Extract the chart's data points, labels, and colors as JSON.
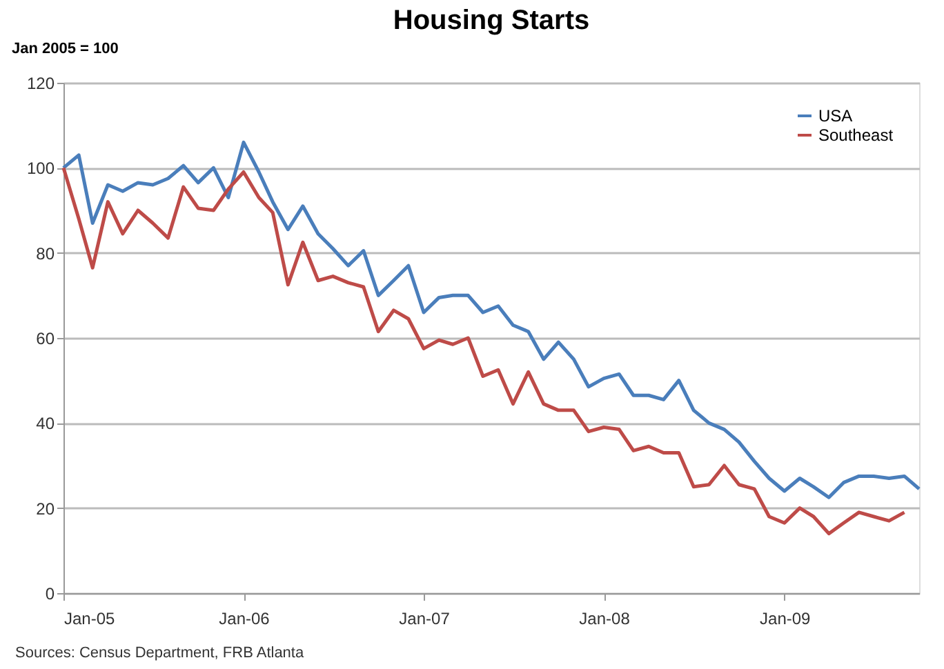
{
  "chart_data": {
    "type": "line",
    "title": "Housing Starts",
    "ylabel": "Jan 2005 = 100",
    "x": [
      "2005-01",
      "2005-02",
      "2005-03",
      "2005-04",
      "2005-05",
      "2005-06",
      "2005-07",
      "2005-08",
      "2005-09",
      "2005-10",
      "2005-11",
      "2005-12",
      "2006-01",
      "2006-02",
      "2006-03",
      "2006-04",
      "2006-05",
      "2006-06",
      "2006-07",
      "2006-08",
      "2006-09",
      "2006-10",
      "2006-11",
      "2006-12",
      "2007-01",
      "2007-02",
      "2007-03",
      "2007-04",
      "2007-05",
      "2007-06",
      "2007-07",
      "2007-08",
      "2007-09",
      "2007-10",
      "2007-11",
      "2007-12",
      "2008-01",
      "2008-02",
      "2008-03",
      "2008-04",
      "2008-05",
      "2008-06",
      "2008-07",
      "2008-08",
      "2008-09",
      "2008-10",
      "2008-11",
      "2008-12",
      "2009-01",
      "2009-02",
      "2009-03",
      "2009-04",
      "2009-05",
      "2009-06",
      "2009-07",
      "2009-08",
      "2009-09",
      "2009-10"
    ],
    "series": [
      {
        "name": "USA",
        "color": "#4a7ebb",
        "values": [
          100,
          103,
          87,
          96,
          94.5,
          96.5,
          96,
          97.5,
          100.5,
          96.5,
          100,
          93,
          106,
          99,
          92,
          85.5,
          91,
          84.5,
          81,
          77,
          80.5,
          70,
          73.5,
          77,
          66,
          69.5,
          70,
          70,
          66,
          67.5,
          63,
          61.5,
          55,
          59,
          55,
          48.5,
          50.5,
          51.5,
          46.5,
          46.5,
          45.5,
          50,
          43,
          40,
          38.5,
          35.5,
          31,
          27,
          24,
          27,
          25,
          22.5,
          26,
          27.5,
          27.5,
          27,
          27.5,
          24.5
        ]
      },
      {
        "name": "Southeast",
        "color": "#be4b48",
        "values": [
          100,
          88,
          76.5,
          92,
          84.5,
          90,
          87,
          83.5,
          95.5,
          90.5,
          90,
          95,
          99,
          93,
          89.5,
          72.5,
          82.5,
          73.5,
          74.5,
          73,
          72,
          61.5,
          66.5,
          64.5,
          57.5,
          59.5,
          58.5,
          60,
          51,
          52.5,
          44.5,
          52,
          44.5,
          43,
          43,
          38,
          39,
          38.5,
          33.5,
          34.5,
          33,
          33,
          25,
          25.5,
          30,
          25.5,
          24.5,
          18,
          16.5,
          20,
          18,
          14,
          16.5,
          19,
          18,
          17,
          19,
          null
        ]
      }
    ],
    "xlim": [
      "2005-01",
      "2009-10"
    ],
    "xticks": [
      {
        "value": "2005-01",
        "label": "Jan-05"
      },
      {
        "value": "2006-01",
        "label": "Jan-06"
      },
      {
        "value": "2007-01",
        "label": "Jan-07"
      },
      {
        "value": "2008-01",
        "label": "Jan-08"
      },
      {
        "value": "2009-01",
        "label": "Jan-09"
      }
    ],
    "ylim": [
      0,
      120
    ],
    "yticks": [
      0,
      20,
      40,
      60,
      80,
      100,
      120
    ],
    "grid": "y",
    "legend": "top right",
    "marker": "none",
    "line_style": "solid",
    "annotations": [
      "Sources: Census Department,  FRB Atlanta"
    ]
  }
}
